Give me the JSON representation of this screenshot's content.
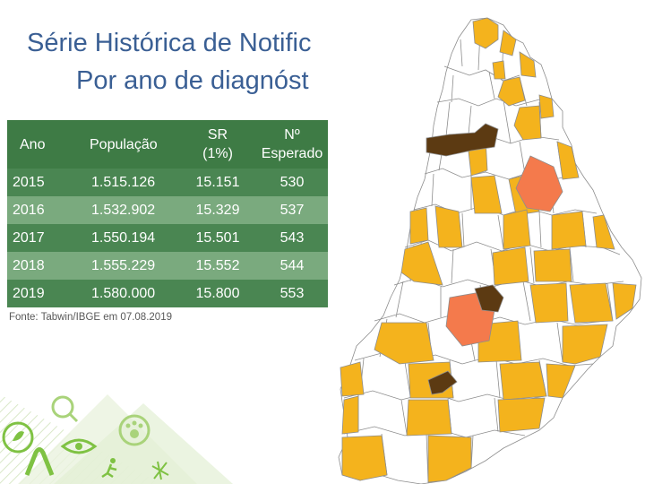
{
  "slide": {
    "title_line1": "Série Histórica de Notific",
    "title_line2": "Por ano de diagnóst",
    "source": "Fonte: Tabwin/IBGE em 07.08.2019"
  },
  "table": {
    "headers": [
      "Ano",
      "População",
      "SR (1%)",
      "Nº Esperado"
    ],
    "header_sr_line1": "SR",
    "header_sr_line2": "(1%)",
    "header_esp_line1": "Nº",
    "header_esp_line2": "Esperado",
    "rows": [
      [
        "2015",
        "1.515.126",
        "15.151",
        "530"
      ],
      [
        "2016",
        "1.532.902",
        "15.329",
        "537"
      ],
      [
        "2017",
        "1.550.194",
        "15.501",
        "543"
      ],
      [
        "2018",
        "1.555.229",
        "15.552",
        "544"
      ],
      [
        "2019",
        "1.580.000",
        "15.800",
        "553"
      ]
    ]
  },
  "colors": {
    "title": "#3a5f94",
    "table_header": "#3e7b45",
    "row_dark": "#4a8652",
    "row_light": "#7aaa7e",
    "map_yellow": "#f4b31d",
    "map_brown": "#5c3a12",
    "map_orange": "#f47a4c",
    "map_border": "#8d8d8d",
    "decor_green": "#7fc243"
  },
  "decor_icons": [
    "leaf-icon",
    "magnifier-icon",
    "eye-icon",
    "paw-icon",
    "ribbon-icon",
    "runner-icon",
    "mosquito-icon"
  ]
}
